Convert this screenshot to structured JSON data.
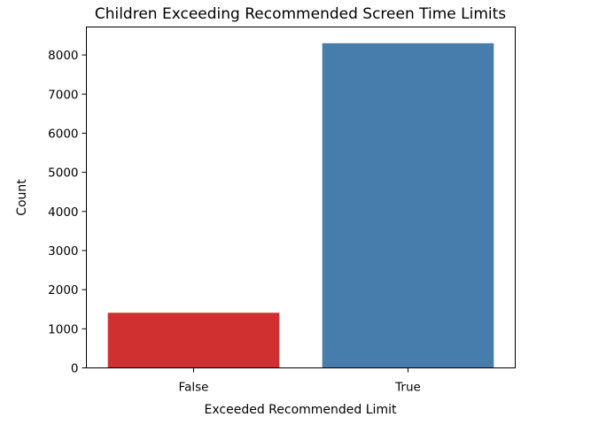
{
  "chart_data": {
    "type": "bar",
    "title": "Children Exceeding Recommended Screen Time Limits",
    "xlabel": "Exceeded Recommended Limit",
    "ylabel": "Count",
    "categories": [
      "False",
      "True"
    ],
    "values": [
      1410,
      8300
    ],
    "colors": [
      "#d0302f",
      "#477dad"
    ],
    "yticks": [
      0,
      1000,
      2000,
      3000,
      4000,
      5000,
      6000,
      7000,
      8000
    ],
    "ylim": [
      0,
      8715
    ],
    "grid": false,
    "legend": "none"
  }
}
